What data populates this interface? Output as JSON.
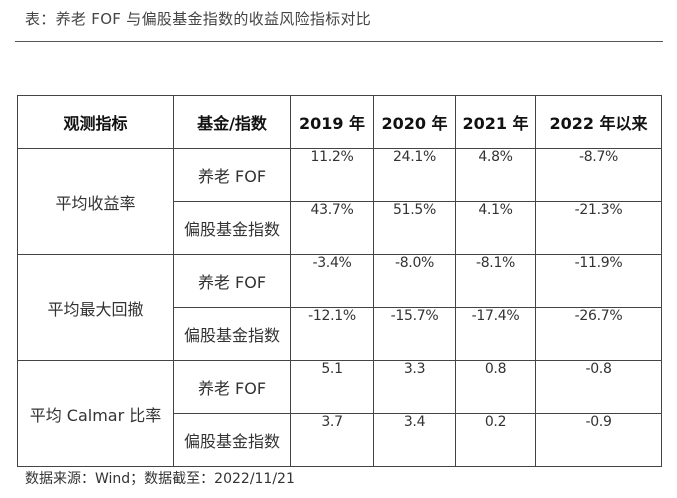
{
  "caption": "表：养老 FOF 与偏股基金指数的收益风险指标对比",
  "table": {
    "headers": [
      "观测指标",
      "基金/指数",
      "2019 年",
      "2020 年",
      "2021 年",
      "2022 年以来"
    ],
    "groups": [
      {
        "metric": "平均收益率",
        "rows": [
          {
            "subject": "养老 FOF",
            "values": [
              "11.2%",
              "24.1%",
              "4.8%",
              "-8.7%"
            ]
          },
          {
            "subject": "偏股基金指数",
            "values": [
              "43.7%",
              "51.5%",
              "4.1%",
              "-21.3%"
            ]
          }
        ]
      },
      {
        "metric": "平均最大回撤",
        "rows": [
          {
            "subject": "养老 FOF",
            "values": [
              "-3.4%",
              "-8.0%",
              "-8.1%",
              "-11.9%"
            ]
          },
          {
            "subject": "偏股基金指数",
            "values": [
              "-12.1%",
              "-15.7%",
              "-17.4%",
              "-26.7%"
            ]
          }
        ]
      },
      {
        "metric": "平均 Calmar 比率",
        "rows": [
          {
            "subject": "养老 FOF",
            "values": [
              "5.1",
              "3.3",
              "0.8",
              "-0.8"
            ]
          },
          {
            "subject": "偏股基金指数",
            "values": [
              "3.7",
              "3.4",
              "0.2",
              "-0.9"
            ]
          }
        ]
      }
    ]
  },
  "source": "数据来源：Wind；数据截至：2022/11/21"
}
